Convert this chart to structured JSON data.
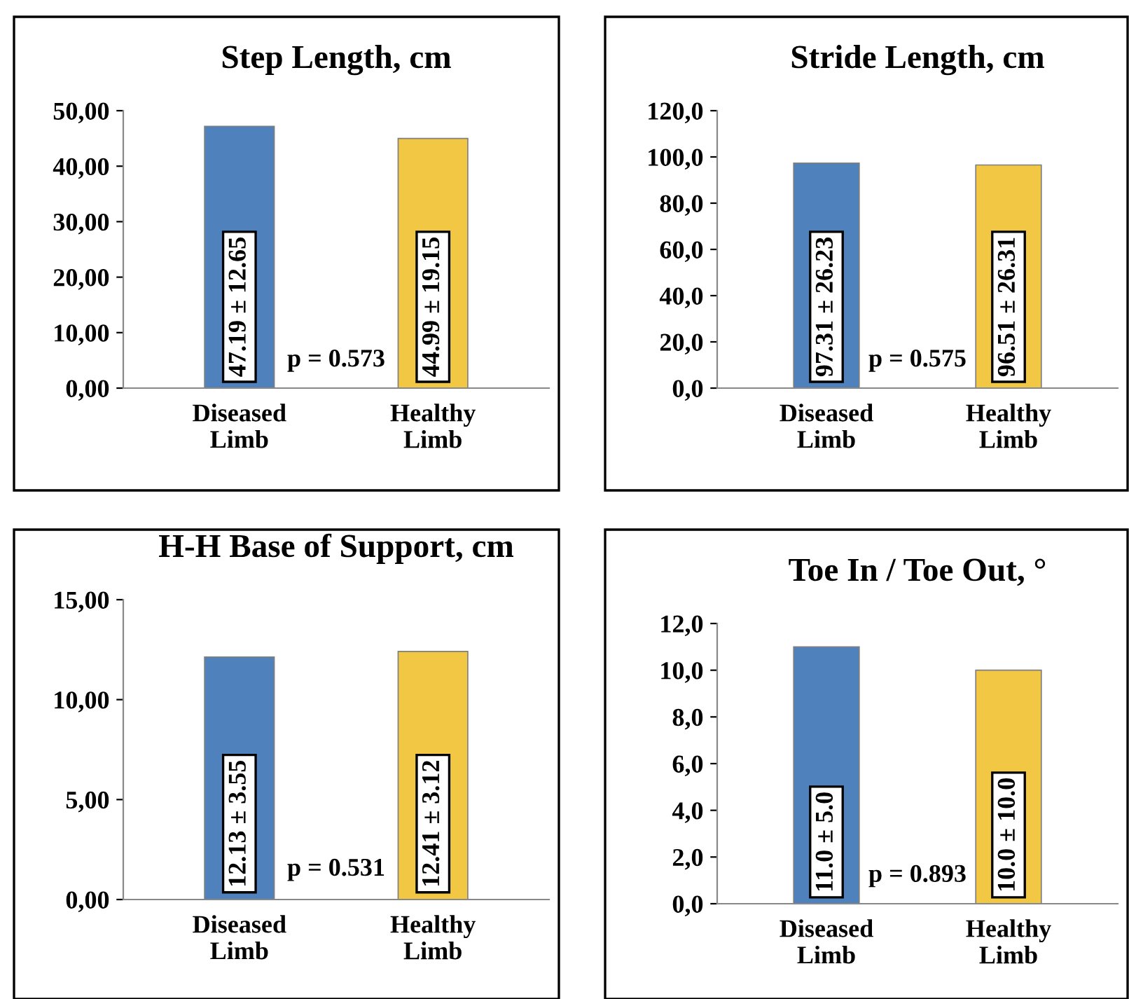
{
  "chart_data": [
    {
      "type": "bar",
      "title": "Step Length, cm",
      "categories": [
        "Diseased\nLimb",
        "Healthy\nLimb"
      ],
      "values": [
        47.19,
        44.99
      ],
      "colors": [
        "#4f81bd",
        "#f2c744"
      ],
      "value_labels": [
        "47.19 ± 12.65",
        "44.99 ± 19.15"
      ],
      "ylim": [
        0,
        50
      ],
      "yticks": [
        {
          "value": 0,
          "label": "0,00"
        },
        {
          "value": 10,
          "label": "10,00"
        },
        {
          "value": 20,
          "label": "20,00"
        },
        {
          "value": 30,
          "label": "30,00"
        },
        {
          "value": 40,
          "label": "40,00"
        },
        {
          "value": 50,
          "label": "50,00"
        }
      ],
      "annotations": [
        "p = 0.573"
      ],
      "grid": false,
      "legend": false
    },
    {
      "type": "bar",
      "title": "Stride Length, cm",
      "categories": [
        "Diseased\nLimb",
        "Healthy\nLimb"
      ],
      "values": [
        97.31,
        96.51
      ],
      "colors": [
        "#4f81bd",
        "#f2c744"
      ],
      "value_labels": [
        "97.31 ± 26.23",
        "96.51 ± 26.31"
      ],
      "ylim": [
        0,
        120
      ],
      "yticks": [
        {
          "value": 0,
          "label": "0,0"
        },
        {
          "value": 20,
          "label": "20,0"
        },
        {
          "value": 40,
          "label": "40,0"
        },
        {
          "value": 60,
          "label": "60,0"
        },
        {
          "value": 80,
          "label": "80,0"
        },
        {
          "value": 100,
          "label": "100,0"
        },
        {
          "value": 120,
          "label": "120,0"
        }
      ],
      "annotations": [
        "p = 0.575"
      ],
      "grid": false,
      "legend": false
    },
    {
      "type": "bar",
      "title": "H-H Base of Support, cm",
      "categories": [
        "Diseased\nLimb",
        "Healthy\nLimb"
      ],
      "values": [
        12.13,
        12.41
      ],
      "colors": [
        "#4f81bd",
        "#f2c744"
      ],
      "value_labels": [
        "12.13 ± 3.55",
        "12.41 ± 3.12"
      ],
      "ylim": [
        0,
        15
      ],
      "yticks": [
        {
          "value": 0,
          "label": "0,00"
        },
        {
          "value": 5,
          "label": "5,00"
        },
        {
          "value": 10,
          "label": "10,00"
        },
        {
          "value": 15,
          "label": "15,00"
        }
      ],
      "annotations": [
        "p = 0.531"
      ],
      "grid": false,
      "legend": false
    },
    {
      "type": "bar",
      "title": "Toe In / Toe Out, °",
      "categories": [
        "Diseased\nLimb",
        "Healthy\nLimb"
      ],
      "values": [
        11.0,
        10.0
      ],
      "colors": [
        "#4f81bd",
        "#f2c744"
      ],
      "value_labels": [
        "11.0 ± 5.0",
        "10.0 ± 10.0"
      ],
      "ylim": [
        0,
        12
      ],
      "yticks": [
        {
          "value": 0,
          "label": "0,0"
        },
        {
          "value": 2,
          "label": "2,0"
        },
        {
          "value": 4,
          "label": "4,0"
        },
        {
          "value": 6,
          "label": "6,0"
        },
        {
          "value": 8,
          "label": "8,0"
        },
        {
          "value": 10,
          "label": "10,0"
        },
        {
          "value": 12,
          "label": "12,0"
        }
      ],
      "annotations": [
        "p = 0.893"
      ],
      "grid": false,
      "legend": false
    }
  ]
}
